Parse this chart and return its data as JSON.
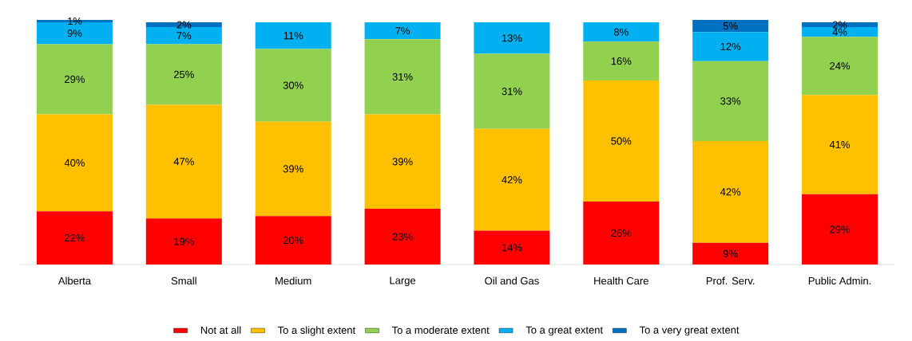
{
  "chart_data": {
    "type": "bar",
    "stacked": true,
    "categories": [
      "Alberta",
      "Small",
      "Medium",
      "Large",
      "Oil and Gas",
      "Health Care",
      "Prof. Serv.",
      "Public Admin."
    ],
    "series": [
      {
        "name": "Not at all",
        "color": "#ff0000",
        "values": [
          22,
          19,
          20,
          23,
          14,
          26,
          9,
          29
        ],
        "value_labels": [
          "22%",
          "19%",
          "20%",
          "23%",
          "14%",
          "26%",
          "9%",
          "29%"
        ]
      },
      {
        "name": "To a slight extent",
        "color": "#ffc000",
        "values": [
          40,
          47,
          39,
          39,
          42,
          50,
          42,
          41
        ],
        "value_labels": [
          "40%",
          "47%",
          "39%",
          "39%",
          "42%",
          "50%",
          "42%",
          "41%"
        ]
      },
      {
        "name": "To a moderate extent",
        "color": "#92d050",
        "values": [
          29,
          25,
          30,
          31,
          31,
          16,
          33,
          24
        ],
        "value_labels": [
          "29%",
          "25%",
          "30%",
          "31%",
          "31%",
          "16%",
          "33%",
          "24%"
        ]
      },
      {
        "name": "To a great extent",
        "color": "#00b0f0",
        "values": [
          9,
          7,
          11,
          7,
          13,
          8,
          12,
          4
        ],
        "value_labels": [
          "9%",
          "7%",
          "11%",
          "7%",
          "13%",
          "8%",
          "12%",
          "4%"
        ]
      },
      {
        "name": "To a very great extent",
        "color": "#0070c0",
        "values": [
          1,
          2,
          null,
          null,
          null,
          null,
          5,
          2
        ],
        "value_labels": [
          "1%",
          "2%",
          null,
          null,
          null,
          null,
          "5%",
          "2%"
        ]
      }
    ],
    "legend": "bottom"
  }
}
